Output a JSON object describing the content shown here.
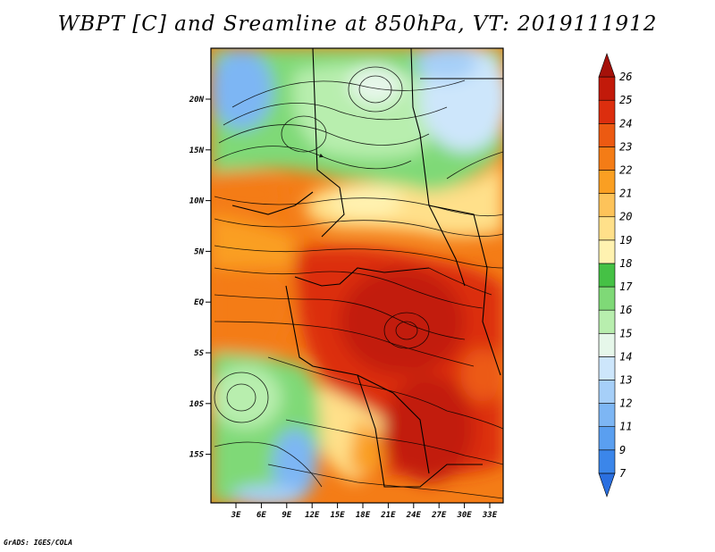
{
  "title": "WBPT [C] and Sreamline at 850hPa, VT: 2019111912",
  "credit": "GrADS: IGES/COLA",
  "map": {
    "lat_labels": [
      "20N",
      "15N",
      "10N",
      "5N",
      "EQ",
      "5S",
      "10S",
      "15S"
    ],
    "lon_labels": [
      "3E",
      "6E",
      "9E",
      "12E",
      "15E",
      "18E",
      "21E",
      "24E",
      "27E",
      "30E",
      "33E"
    ],
    "variable": "WBPT",
    "units": "C",
    "level": "850hPa",
    "valid_time": "2019111912"
  },
  "colorbar": {
    "labels": [
      "7",
      "9",
      "11",
      "12",
      "13",
      "14",
      "15",
      "16",
      "17",
      "18",
      "19",
      "20",
      "21",
      "22",
      "23",
      "24",
      "25",
      "26"
    ],
    "colors": [
      "#2a6fe0",
      "#3b86ea",
      "#5a9ff0",
      "#7db6f4",
      "#a6cff8",
      "#cde6fb",
      "#e6f7ea",
      "#b8eeae",
      "#7fd977",
      "#45c145",
      "#fff2b0",
      "#ffe08a",
      "#fdc35a",
      "#fa9f22",
      "#f47c16",
      "#ec5a12",
      "#dc2e0e",
      "#c21a0a",
      "#a5110a"
    ]
  }
}
